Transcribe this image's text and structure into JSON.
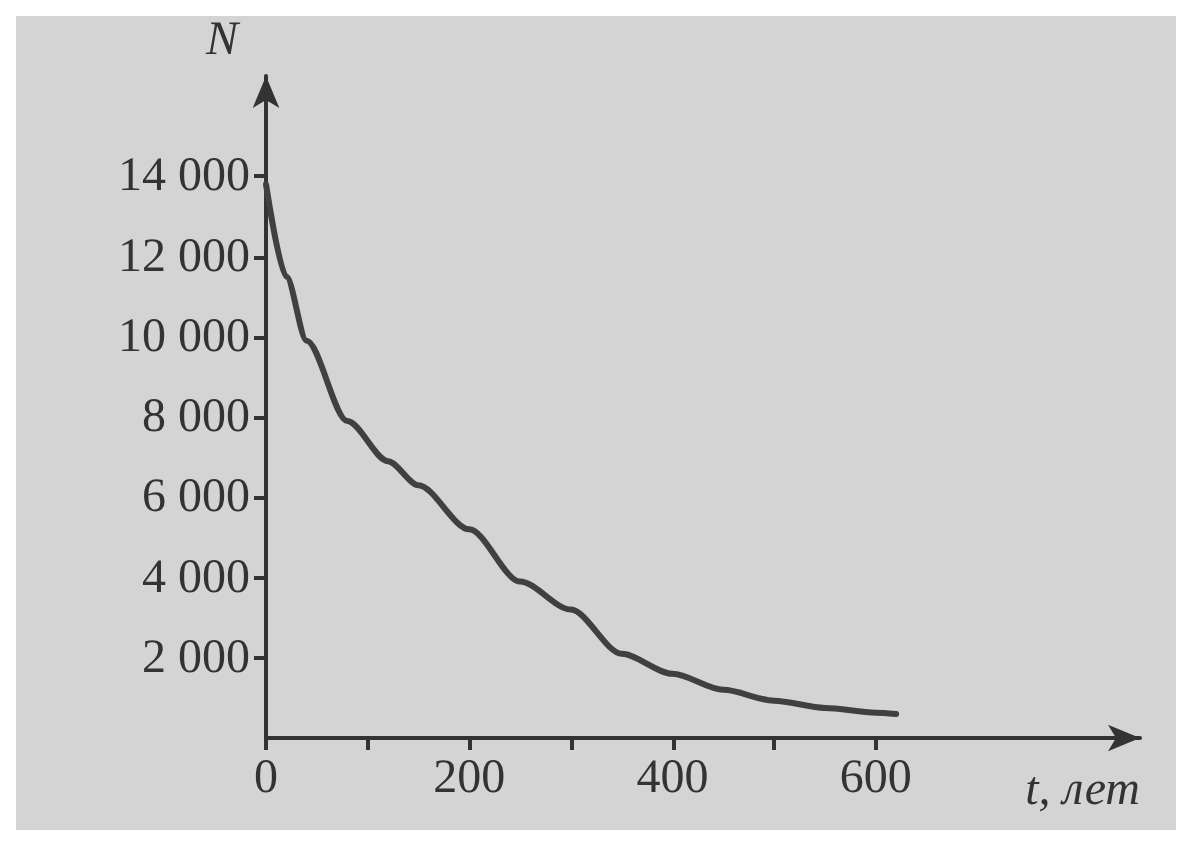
{
  "chart_data": {
    "type": "line",
    "xlabel": "t, лет",
    "ylabel": "N",
    "x": [
      0,
      20,
      40,
      80,
      120,
      150,
      200,
      250,
      300,
      350,
      400,
      450,
      500,
      550,
      600,
      620
    ],
    "series": [
      {
        "color": "#404040",
        "values": [
          13800,
          11500,
          9900,
          7900,
          6900,
          6300,
          5200,
          3900,
          3200,
          2100,
          1600,
          1200,
          930,
          750,
          630,
          600
        ]
      }
    ],
    "xlim": [
      0,
      860
    ],
    "ylim": [
      0,
      16500
    ],
    "xticks": [
      0,
      {
        "value": 100,
        "label": null
      },
      200,
      {
        "value": 300,
        "label": null
      },
      400,
      {
        "value": 500,
        "label": null
      },
      600
    ],
    "yticks": [
      {
        "value": 2000,
        "label": "2 000"
      },
      {
        "value": 4000,
        "label": "4 000"
      },
      {
        "value": 6000,
        "label": "6 000"
      },
      {
        "value": 8000,
        "label": "8 000"
      },
      {
        "value": 10000,
        "label": "10 000"
      },
      {
        "value": 12000,
        "label": "12 000"
      },
      {
        "value": 14000,
        "label": "14 000"
      }
    ],
    "grid": false,
    "marker": "none",
    "line_style": "solid"
  }
}
